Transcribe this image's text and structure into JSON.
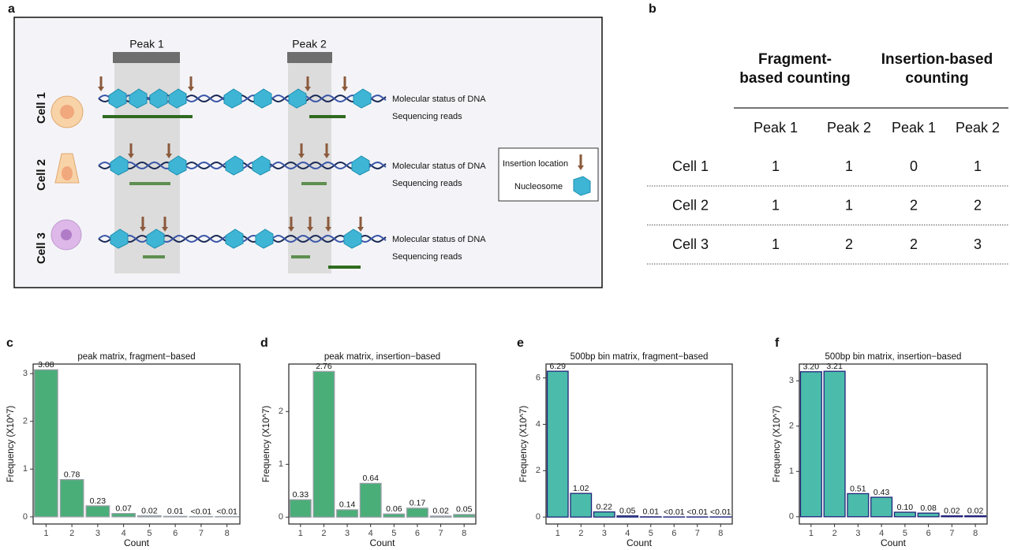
{
  "panel_labels": [
    "a",
    "b",
    "c",
    "d",
    "e",
    "f"
  ],
  "diagram": {
    "peaks": [
      "Peak 1",
      "Peak 2"
    ],
    "cells": [
      "Cell 1",
      "Cell 2",
      "Cell 3"
    ],
    "row_labels": [
      "Molecular status of DNA",
      "Sequencing reads"
    ],
    "legend": [
      "Insertion location",
      "Nucleosome"
    ]
  },
  "table": {
    "group_headers": [
      "Fragment-based counting",
      "Insertion-based counting"
    ],
    "columns": [
      "Peak 1",
      "Peak 2",
      "Peak 1",
      "Peak 2"
    ],
    "rows": [
      {
        "label": "Cell 1",
        "values": [
          1,
          1,
          0,
          1
        ]
      },
      {
        "label": "Cell 2",
        "values": [
          1,
          1,
          2,
          2
        ]
      },
      {
        "label": "Cell 3",
        "values": [
          1,
          2,
          2,
          3
        ]
      }
    ]
  },
  "chart_data": [
    {
      "type": "bar",
      "title": "peak matrix, fragment−based",
      "x_label": "Count",
      "y_label": "Frequency (X10^7)",
      "categories": [
        "1",
        "2",
        "3",
        "4",
        "5",
        "6",
        "7",
        "8"
      ],
      "values": [
        3.08,
        0.78,
        0.23,
        0.07,
        0.02,
        0.01,
        0.005,
        0.005
      ],
      "value_labels": [
        "3.08",
        "0.78",
        "0.23",
        "0.07",
        "0.02",
        "0.01",
        "<0.01",
        "<0.01"
      ],
      "color": "#4aae78",
      "edge_color": "#9aa0a8",
      "ylim": [
        -0.15,
        3.2
      ],
      "yticks": [
        0,
        1,
        2,
        3
      ]
    },
    {
      "type": "bar",
      "title": "peak matrix, insertion−based",
      "x_label": "Count",
      "y_label": "Frequency (X10^7)",
      "categories": [
        "1",
        "2",
        "3",
        "4",
        "5",
        "6",
        "7",
        "8"
      ],
      "values": [
        0.33,
        2.76,
        0.14,
        0.64,
        0.06,
        0.17,
        0.02,
        0.05
      ],
      "value_labels": [
        "0.33",
        "2.76",
        "0.14",
        "0.64",
        "0.06",
        "0.17",
        "0.02",
        "0.05"
      ],
      "color": "#4aae78",
      "edge_color": "#9aa0a8",
      "ylim": [
        -0.13,
        2.9
      ],
      "yticks": [
        0,
        1,
        2
      ]
    },
    {
      "type": "bar",
      "title": "500bp bin matrix, fragment−based",
      "x_label": "Count",
      "y_label": "Frequency (X10^7)",
      "categories": [
        "1",
        "2",
        "3",
        "4",
        "5",
        "6",
        "7",
        "8"
      ],
      "values": [
        6.29,
        1.02,
        0.22,
        0.05,
        0.01,
        0.005,
        0.005,
        0.005
      ],
      "value_labels": [
        "6.29",
        "1.02",
        "0.22",
        "0.05",
        "0.01",
        "<0.01",
        "<0.01",
        "<0.01"
      ],
      "color": "#4bbcab",
      "edge_color": "#22237a",
      "ylim": [
        -0.3,
        6.6
      ],
      "yticks": [
        0,
        2,
        4,
        6
      ]
    },
    {
      "type": "bar",
      "title": "500bp bin matrix, insertion−based",
      "x_label": "Count",
      "y_label": "Frequency (X10^7)",
      "categories": [
        "1",
        "2",
        "3",
        "4",
        "5",
        "6",
        "7",
        "8"
      ],
      "values": [
        3.2,
        3.21,
        0.51,
        0.43,
        0.1,
        0.08,
        0.02,
        0.02
      ],
      "value_labels": [
        "3.20",
        "3.21",
        "0.51",
        "0.43",
        "0.10",
        "0.08",
        "0.02",
        "0.02"
      ],
      "color": "#4bbcab",
      "edge_color": "#22237a",
      "ylim": [
        -0.16,
        3.37
      ],
      "yticks": [
        0,
        1,
        2,
        3
      ]
    }
  ]
}
